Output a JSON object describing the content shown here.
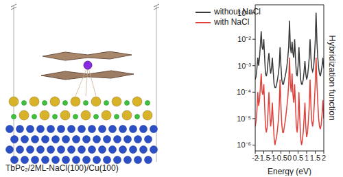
{
  "caption": "TbPc₂/2ML-NaCl(100)/Cu(100)",
  "chart_data": {
    "type": "line",
    "xlabel": "Energy (eV)",
    "ylabel": "Hybridization function",
    "log": "y",
    "grid": false,
    "legend": "upper left",
    "xlim": [
      -2,
      2
    ],
    "xticks": [
      -2,
      -1.5,
      -1,
      -0.5,
      0,
      0.5,
      1,
      1.5,
      2
    ],
    "ylim": [
      6e-07,
      0.2
    ],
    "yticks": [
      {
        "value": 1e-06,
        "label": "10⁻⁶"
      },
      {
        "value": 1e-05,
        "label": "10⁻⁵"
      },
      {
        "value": 0.0001,
        "label": "10⁻⁴"
      },
      {
        "value": 0.001,
        "label": "10⁻³"
      },
      {
        "value": 0.01,
        "label": "10⁻²"
      },
      {
        "value": 0.1,
        "label": "10⁻¹"
      }
    ],
    "x": [
      -2.0,
      -1.95,
      -1.9,
      -1.85,
      -1.8,
      -1.75,
      -1.7,
      -1.65,
      -1.6,
      -1.55,
      -1.5,
      -1.45,
      -1.4,
      -1.35,
      -1.3,
      -1.25,
      -1.2,
      -1.15,
      -1.1,
      -1.05,
      -1.0,
      -0.95,
      -0.9,
      -0.85,
      -0.8,
      -0.75,
      -0.7,
      -0.65,
      -0.6,
      -0.55,
      -0.5,
      -0.45,
      -0.4,
      -0.35,
      -0.3,
      -0.25,
      -0.2,
      -0.15,
      -0.1,
      -0.05,
      0,
      0.05,
      0.1,
      0.15,
      0.2,
      0.25,
      0.3,
      0.35,
      0.4,
      0.45,
      0.5,
      0.55,
      0.6,
      0.65,
      0.7,
      0.75,
      0.8,
      0.85,
      0.9,
      0.95,
      1.0,
      1.05,
      1.1,
      1.15,
      1.2,
      1.25,
      1.3,
      1.35,
      1.4,
      1.45,
      1.5,
      1.55,
      1.6,
      1.65,
      1.7,
      1.75,
      1.8,
      1.85,
      1.9,
      1.95,
      2.0
    ],
    "series": [
      {
        "name": "without NaCl",
        "color": "#3a3a3a",
        "line_style": "solid",
        "values": [
          0.0003,
          0.0004,
          0.0008,
          0.002,
          0.001,
          0.002,
          0.006,
          0.02,
          0.005,
          0.004,
          0.01,
          0.002,
          0.0005,
          0.0004,
          0.0006,
          0.0015,
          0.003,
          0.001,
          0.0005,
          0.0008,
          0.002,
          0.0006,
          0.0002,
          0.00015,
          0.00015,
          0.0002,
          0.0003,
          0.0005,
          0.001,
          0.005,
          0.001,
          0.0003,
          0.0002,
          0.0002,
          0.0003,
          0.0004,
          0.0006,
          0.001,
          0.002,
          0.005,
          0.05,
          0.005,
          0.003,
          0.008,
          0.003,
          0.002,
          0.01,
          0.002,
          0.0005,
          0.0004,
          0.001,
          0.005,
          0.001,
          0.0003,
          0.0002,
          0.0002,
          0.0003,
          0.0006,
          0.0015,
          0.0005,
          0.0003,
          0.0004,
          0.0008,
          0.002,
          0.01,
          0.002,
          0.0008,
          0.0006,
          0.0008,
          0.002,
          0.008,
          0.1,
          0.008,
          0.002,
          0.0008,
          0.0005,
          0.0004,
          0.0006,
          0.001,
          0.002,
          0.0008
        ]
      },
      {
        "name": "with NaCl",
        "color": "#e0403a",
        "line_style": "solid",
        "values": [
          5e-06,
          8e-06,
          2e-05,
          0.0001,
          3e-05,
          5e-05,
          0.00015,
          0.0005,
          0.0001,
          8e-05,
          0.0002,
          3e-05,
          5e-06,
          3e-06,
          5e-06,
          2e-05,
          0.0001,
          2e-05,
          5e-06,
          1e-05,
          4e-05,
          8e-06,
          2e-06,
          1e-06,
          1.5e-06,
          2e-06,
          4e-06,
          8e-06,
          3e-05,
          0.0003,
          3e-05,
          6e-06,
          3e-06,
          3e-06,
          5e-06,
          8e-06,
          1.5e-05,
          3e-05,
          6e-05,
          0.0002,
          0.002,
          0.0002,
          0.0001,
          0.0005,
          8e-05,
          4e-05,
          0.0002,
          3e-05,
          5e-06,
          3e-06,
          1e-05,
          0.0001,
          1e-05,
          2e-06,
          1e-06,
          1.5e-06,
          3e-06,
          1e-05,
          4e-05,
          5e-06,
          2e-06,
          3e-06,
          8e-06,
          3e-05,
          0.0003,
          3e-05,
          8e-06,
          5e-06,
          1e-05,
          4e-05,
          0.0002,
          0.002,
          0.0002,
          4e-05,
          1e-05,
          5e-06,
          4e-06,
          6e-06,
          1.5e-05,
          5e-05,
          1e-05
        ]
      }
    ]
  }
}
